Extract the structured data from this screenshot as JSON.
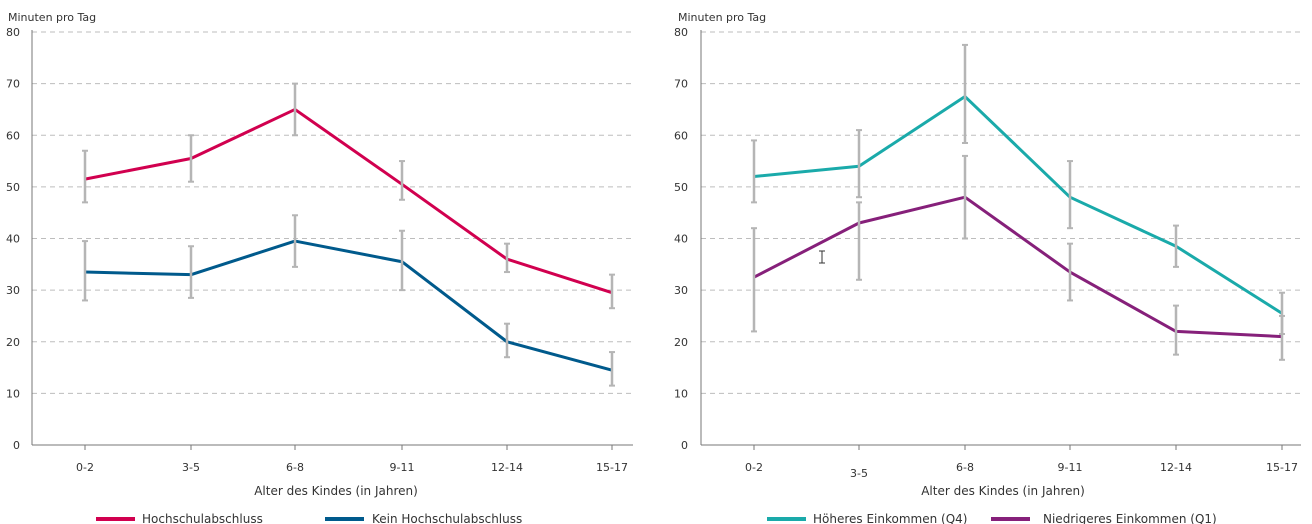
{
  "colors": {
    "hochschul": "#d1004f",
    "kein_hochschul": "#005a8c",
    "hoeheres": "#1aaaaa",
    "niedrigeres": "#86207a",
    "error_bar": "#b5b5b5",
    "grid": "#bdbdbd",
    "axis": "#777777"
  },
  "chart_data": [
    {
      "type": "line",
      "title": "",
      "ylabel": "Minuten pro Tag",
      "xlabel": "Alter des Kindes (in Jahren)",
      "ylim": [
        0,
        80
      ],
      "yticks": [
        0,
        10,
        20,
        30,
        40,
        50,
        60,
        70,
        80
      ],
      "grid": true,
      "legend_position": "bottom",
      "categories": [
        "0-2",
        "3-5",
        "6-8",
        "9-11",
        "12-14",
        "15-17"
      ],
      "series": [
        {
          "name": "Hochschulabschluss",
          "color_key": "hochschul",
          "values": [
            51.5,
            55.5,
            65,
            50.5,
            36,
            29.5
          ],
          "err_low": [
            47,
            51,
            60,
            47.5,
            33.5,
            26.5
          ],
          "err_high": [
            57,
            60,
            70,
            55,
            39,
            33
          ]
        },
        {
          "name": "Kein Hochschulabschluss",
          "color_key": "kein_hochschul",
          "values": [
            33.5,
            33,
            39.5,
            35.5,
            20,
            14.5
          ],
          "err_low": [
            28,
            28.5,
            34.5,
            30,
            17,
            11.5
          ],
          "err_high": [
            39.5,
            38.5,
            44.5,
            41.5,
            23.5,
            18
          ]
        }
      ]
    },
    {
      "type": "line",
      "title": "",
      "ylabel": "Minuten pro Tag",
      "xlabel": "Alter des Kindes (in Jahren)",
      "ylim": [
        0,
        80
      ],
      "yticks": [
        0,
        10,
        20,
        30,
        40,
        50,
        60,
        70,
        80
      ],
      "grid": true,
      "legend_position": "bottom",
      "categories": [
        "0-2",
        "3-5",
        "6-8",
        "9-11",
        "12-14",
        "15-17"
      ],
      "series": [
        {
          "name": "Höheres Einkommen (Q4)",
          "color_key": "hoeheres",
          "values": [
            52,
            54,
            67.5,
            48,
            38.5,
            25.5
          ],
          "err_low": [
            47,
            48,
            58.5,
            42,
            34.5,
            21.5
          ],
          "err_high": [
            59,
            61,
            77.5,
            55,
            42.5,
            29.5
          ]
        },
        {
          "name": "Niedrigeres Einkommen (Q1)",
          "color_key": "niedrigeres",
          "values": [
            32.5,
            43,
            48,
            33.5,
            22,
            21
          ],
          "err_low": [
            22,
            32,
            40,
            28,
            17.5,
            16.5
          ],
          "err_high": [
            42,
            47,
            56,
            39,
            27,
            25
          ]
        }
      ]
    }
  ]
}
